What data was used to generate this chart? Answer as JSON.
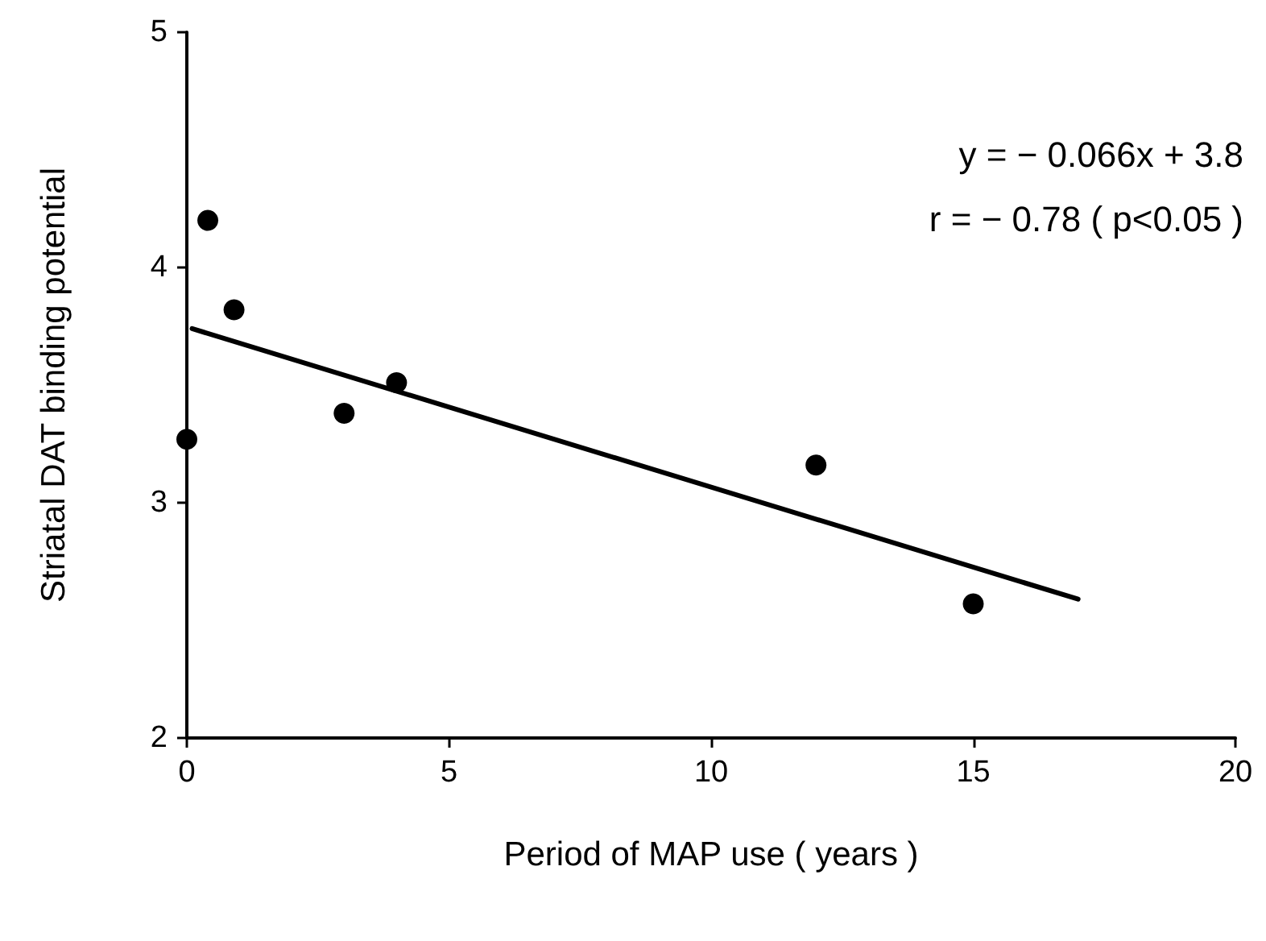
{
  "chart_data": {
    "type": "scatter",
    "xlabel": "Period of MAP use ( years )",
    "ylabel": "Striatal DAT binding potential",
    "xlim": [
      0,
      20
    ],
    "xticks": [
      0,
      5,
      10,
      15,
      20
    ],
    "ylim": [
      2,
      5
    ],
    "yticks": [
      2,
      3,
      4,
      5
    ],
    "grid": false,
    "marker": "circle",
    "annotations": [
      "y = − 0.066x + 3.8",
      "r = − 0.78 ( p<0.05 )"
    ],
    "series": [
      {
        "color": "#000000",
        "x": [
          0,
          0.4,
          0.9,
          3,
          4,
          12,
          15
        ],
        "values": [
          3.27,
          4.2,
          3.82,
          3.38,
          3.51,
          3.16,
          2.57
        ]
      },
      {
        "type": "line",
        "color": "#000000",
        "marker": "none",
        "line_style": "solid",
        "x": [
          0.1,
          17
        ],
        "values": [
          3.74,
          2.59
        ]
      }
    ]
  }
}
